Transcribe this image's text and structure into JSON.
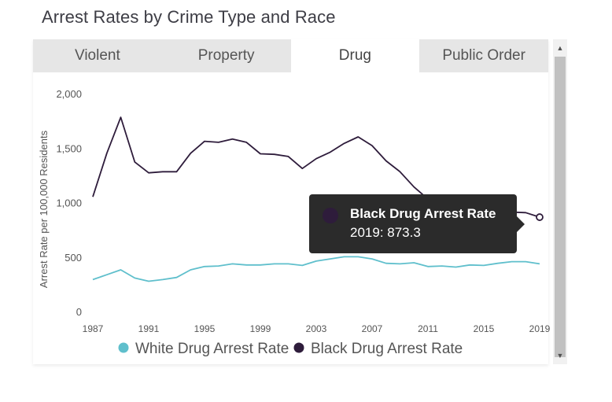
{
  "title": "Arrest Rates by Crime Type and Race",
  "tabs": [
    {
      "label": "Violent",
      "active": false
    },
    {
      "label": "Property",
      "active": false
    },
    {
      "label": "Drug",
      "active": true
    },
    {
      "label": "Public Order",
      "active": false
    }
  ],
  "tooltip": {
    "series": "Black Drug Arrest Rate",
    "value_text": "2019: 873.3"
  },
  "scrollbar": {
    "up_icon": "triangle-up-icon",
    "down_icon": "triangle-down-icon"
  },
  "chart_data": {
    "type": "line",
    "ylabel": "Arrest Rate per 100,000 Residents",
    "ylim": [
      0,
      2000
    ],
    "yticks": [
      0,
      500,
      1000,
      1500,
      2000
    ],
    "ytick_labels": [
      "0",
      "500",
      "1,000",
      "1,500",
      "2,000"
    ],
    "xlim": [
      1987,
      2019
    ],
    "xticks": [
      "1987",
      "1991",
      "1995",
      "1999",
      "2003",
      "2007",
      "2011",
      "2015",
      "2019"
    ],
    "x": [
      1987,
      1988,
      1989,
      1990,
      1991,
      1992,
      1993,
      1994,
      1995,
      1996,
      1997,
      1998,
      1999,
      2000,
      2001,
      2002,
      2003,
      2004,
      2005,
      2006,
      2007,
      2008,
      2009,
      2010,
      2011,
      2012,
      2013,
      2014,
      2015,
      2016,
      2017,
      2018,
      2019
    ],
    "series": [
      {
        "name": "White Drug Arrest Rate",
        "color": "#5fbfcc",
        "values": [
          300,
          345,
          390,
          315,
          285,
          300,
          320,
          390,
          420,
          425,
          445,
          435,
          435,
          445,
          445,
          430,
          470,
          490,
          510,
          510,
          490,
          450,
          445,
          455,
          420,
          425,
          415,
          435,
          430,
          450,
          465,
          465,
          445
        ]
      },
      {
        "name": "Black Drug Arrest Rate",
        "color": "#2e1c3b",
        "values": [
          1060,
          1460,
          1790,
          1380,
          1280,
          1290,
          1290,
          1460,
          1570,
          1560,
          1590,
          1560,
          1455,
          1450,
          1430,
          1320,
          1410,
          1470,
          1550,
          1610,
          1530,
          1390,
          1290,
          1150,
          1040,
          1000,
          980,
          960,
          950,
          940,
          920,
          915,
          873.3
        ]
      }
    ],
    "legend": "bottom",
    "grid": false,
    "highlight": {
      "series": 1,
      "x": 2019
    }
  }
}
